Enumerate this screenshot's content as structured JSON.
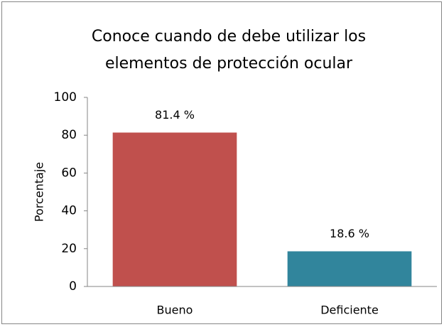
{
  "chart_data": {
    "type": "bar",
    "title": [
      "Conoce cuando de debe utilizar los",
      "elementos de protección ocular"
    ],
    "ylabel": "Porcentaje",
    "categories": [
      "Bueno",
      "Deficiente"
    ],
    "values": [
      81.4,
      18.6
    ],
    "value_labels": [
      "81.4 %",
      "18.6 %"
    ],
    "colors": [
      "#c0504d",
      "#31859c"
    ],
    "ylim": [
      0,
      100
    ],
    "yticks": [
      0,
      20,
      40,
      60,
      80,
      100
    ],
    "grid": false
  }
}
